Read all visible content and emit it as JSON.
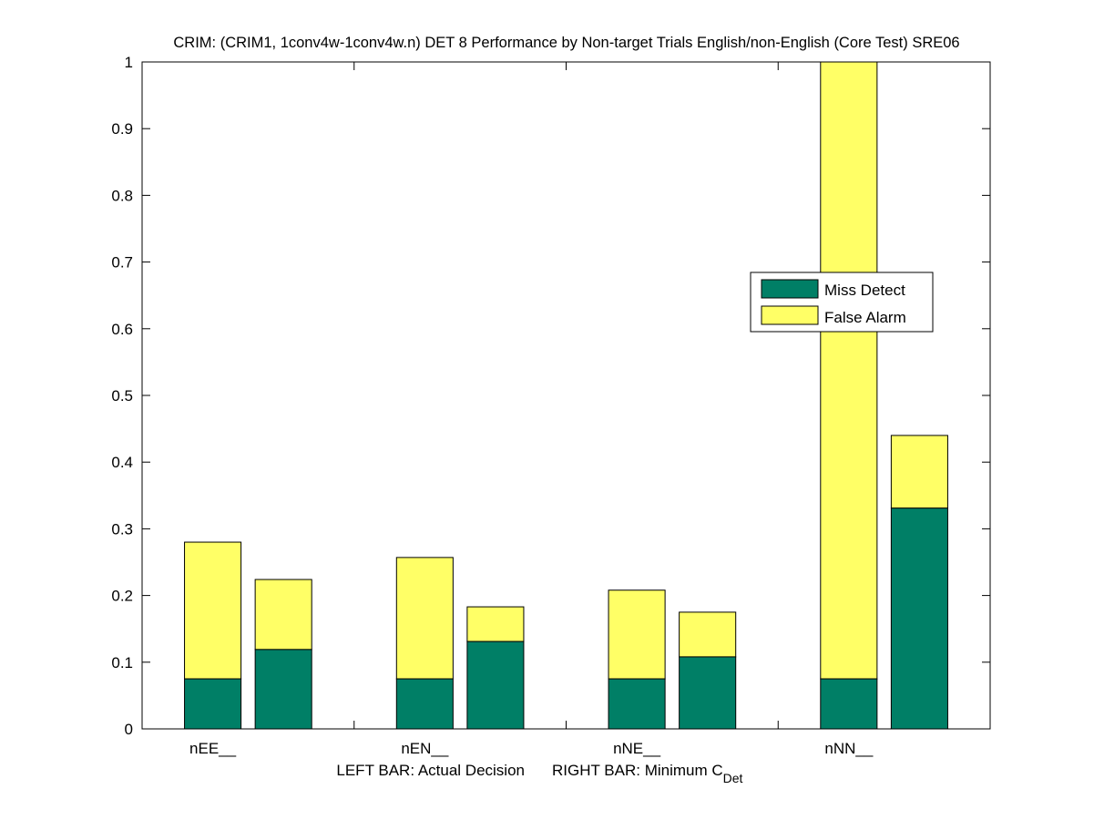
{
  "chart_data": {
    "type": "bar",
    "stacked": true,
    "title": "CRIM: (CRIM1, 1conv4w-1conv4w.n) DET 8 Performance by Non-target Trials English/non-English (Core Test) SRE06",
    "xlabel_left": "LEFT BAR: Actual Decision",
    "xlabel_right_main": "RIGHT BAR: Minimum C",
    "xlabel_right_sub": "Det",
    "categories": [
      "nEE__",
      "nEN__",
      "nNE__",
      "nNN__"
    ],
    "ylim": [
      0,
      1
    ],
    "yticks": [
      "0",
      "0.1",
      "0.2",
      "0.3",
      "0.4",
      "0.5",
      "0.6",
      "0.7",
      "0.8",
      "0.9",
      "1"
    ],
    "grid": false,
    "legend_position": "right-center",
    "series": [
      {
        "name": "Miss Detect",
        "color": "#007F66"
      },
      {
        "name": "False Alarm",
        "color": "#FFFF66"
      }
    ],
    "bars": [
      {
        "category": "nEE__",
        "bar": "left",
        "miss": 0.075,
        "false_alarm": 0.205
      },
      {
        "category": "nEE__",
        "bar": "right",
        "miss": 0.119,
        "false_alarm": 0.105
      },
      {
        "category": "nEN__",
        "bar": "left",
        "miss": 0.075,
        "false_alarm": 0.182
      },
      {
        "category": "nEN__",
        "bar": "right",
        "miss": 0.131,
        "false_alarm": 0.052
      },
      {
        "category": "nNE__",
        "bar": "left",
        "miss": 0.075,
        "false_alarm": 0.133
      },
      {
        "category": "nNE__",
        "bar": "right",
        "miss": 0.108,
        "false_alarm": 0.067
      },
      {
        "category": "nNN__",
        "bar": "left",
        "miss": 0.075,
        "false_alarm": 0.925
      },
      {
        "category": "nNN__",
        "bar": "right",
        "miss": 0.331,
        "false_alarm": 0.109
      }
    ]
  }
}
